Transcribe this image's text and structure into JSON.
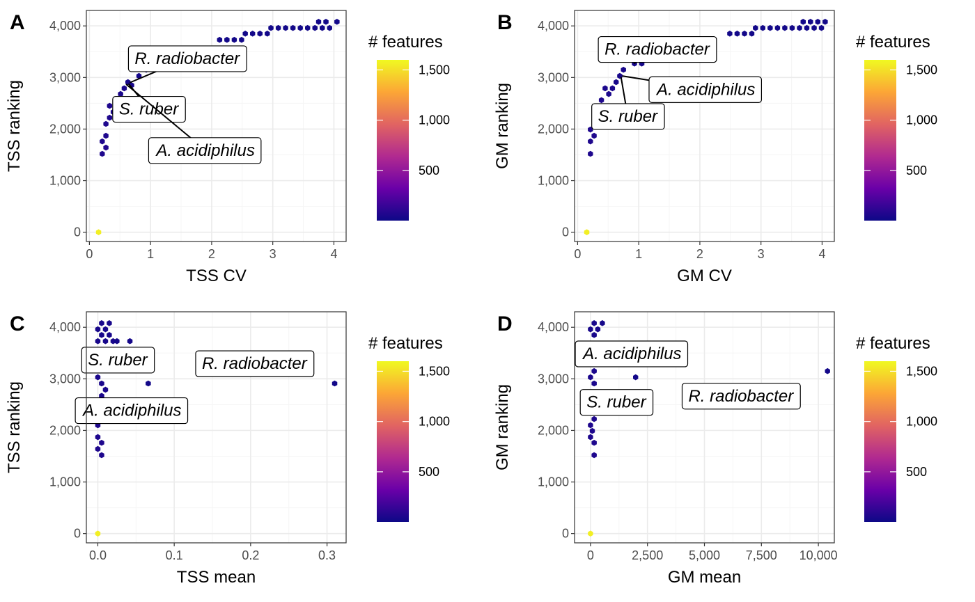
{
  "chart_data": [
    {
      "type": "hexbin",
      "tag": "A",
      "xlabel": "TSS CV",
      "ylabel": "TSS ranking",
      "xlim": [
        -0.05,
        4.2
      ],
      "ylim": [
        -180,
        4300
      ],
      "xticks": [
        0,
        1,
        2,
        3,
        4
      ],
      "xtick_labels": [
        "0",
        "1",
        "2",
        "3",
        "4"
      ],
      "yticks": [
        0,
        1000,
        2000,
        3000,
        4000
      ],
      "ytick_labels": [
        "0",
        "1,000",
        "2,000",
        "3,000",
        "4,000"
      ],
      "grid": true,
      "legend": {
        "title": "# features",
        "ticks": [
          500,
          1000,
          1500
        ],
        "tick_labels": [
          "500",
          "1,000",
          "1,500"
        ],
        "range": [
          1,
          1600
        ],
        "position": "right"
      },
      "points": [
        {
          "x": 0.15,
          "y": 0,
          "count": 1560
        },
        {
          "x": 0.21,
          "y": 1520,
          "count": 60
        },
        {
          "x": 0.27,
          "y": 1640,
          "count": 70
        },
        {
          "x": 0.21,
          "y": 1760,
          "count": 60
        },
        {
          "x": 0.27,
          "y": 1870,
          "count": 60
        },
        {
          "x": 0.27,
          "y": 2100,
          "count": 60
        },
        {
          "x": 0.33,
          "y": 2220,
          "count": 60
        },
        {
          "x": 0.39,
          "y": 2330,
          "count": 50
        },
        {
          "x": 0.33,
          "y": 2450,
          "count": 60
        },
        {
          "x": 0.45,
          "y": 2560,
          "count": 50
        },
        {
          "x": 0.51,
          "y": 2680,
          "count": 50
        },
        {
          "x": 0.57,
          "y": 2790,
          "count": 50
        },
        {
          "x": 0.63,
          "y": 2910,
          "count": 40
        },
        {
          "x": 0.69,
          "y": 2850,
          "count": 40
        },
        {
          "x": 0.81,
          "y": 3030,
          "count": 30
        },
        {
          "x": 0.93,
          "y": 3150,
          "count": 30
        },
        {
          "x": 2.13,
          "y": 3730,
          "count": 20
        },
        {
          "x": 2.25,
          "y": 3730,
          "count": 20
        },
        {
          "x": 2.37,
          "y": 3730,
          "count": 20
        },
        {
          "x": 2.49,
          "y": 3730,
          "count": 20
        },
        {
          "x": 2.55,
          "y": 3850,
          "count": 20
        },
        {
          "x": 2.67,
          "y": 3850,
          "count": 20
        },
        {
          "x": 2.79,
          "y": 3850,
          "count": 20
        },
        {
          "x": 2.91,
          "y": 3850,
          "count": 20
        },
        {
          "x": 2.97,
          "y": 3960,
          "count": 20
        },
        {
          "x": 3.09,
          "y": 3960,
          "count": 20
        },
        {
          "x": 3.21,
          "y": 3960,
          "count": 20
        },
        {
          "x": 3.33,
          "y": 3960,
          "count": 20
        },
        {
          "x": 3.45,
          "y": 3960,
          "count": 20
        },
        {
          "x": 3.57,
          "y": 3960,
          "count": 20
        },
        {
          "x": 3.69,
          "y": 3960,
          "count": 20
        },
        {
          "x": 3.81,
          "y": 3960,
          "count": 20
        },
        {
          "x": 3.93,
          "y": 3960,
          "count": 20
        },
        {
          "x": 3.75,
          "y": 4080,
          "count": 20
        },
        {
          "x": 3.87,
          "y": 4080,
          "count": 20
        },
        {
          "x": 4.05,
          "y": 4080,
          "count": 20
        }
      ],
      "annotations": [
        {
          "text": "R. radiobacter",
          "x": 1.6,
          "y": 3370,
          "point": [
            0.66,
            2900
          ]
        },
        {
          "text": "S. ruber",
          "x": 0.97,
          "y": 2390,
          "point": [
            0.64,
            2880
          ]
        },
        {
          "text": "A. acidiphilus",
          "x": 1.9,
          "y": 1590,
          "point": [
            0.6,
            2870
          ]
        }
      ]
    },
    {
      "type": "hexbin",
      "tag": "B",
      "xlabel": "GM CV",
      "ylabel": "GM ranking",
      "xlim": [
        -0.05,
        4.2
      ],
      "ylim": [
        -180,
        4300
      ],
      "xticks": [
        0,
        1,
        2,
        3,
        4
      ],
      "xtick_labels": [
        "0",
        "1",
        "2",
        "3",
        "4"
      ],
      "yticks": [
        0,
        1000,
        2000,
        3000,
        4000
      ],
      "ytick_labels": [
        "0",
        "1,000",
        "2,000",
        "3,000",
        "4,000"
      ],
      "grid": true,
      "legend": {
        "title": "# features",
        "ticks": [
          500,
          1000,
          1500
        ],
        "tick_labels": [
          "500",
          "1,000",
          "1,500"
        ],
        "range": [
          1,
          1600
        ],
        "position": "right"
      },
      "points": [
        {
          "x": 0.15,
          "y": 0,
          "count": 1560
        },
        {
          "x": 0.21,
          "y": 1520,
          "count": 60
        },
        {
          "x": 0.21,
          "y": 1760,
          "count": 60
        },
        {
          "x": 0.27,
          "y": 1870,
          "count": 60
        },
        {
          "x": 0.21,
          "y": 1990,
          "count": 60
        },
        {
          "x": 0.33,
          "y": 2330,
          "count": 60
        },
        {
          "x": 0.39,
          "y": 2560,
          "count": 60
        },
        {
          "x": 0.51,
          "y": 2680,
          "count": 50
        },
        {
          "x": 0.45,
          "y": 2790,
          "count": 50
        },
        {
          "x": 0.57,
          "y": 2790,
          "count": 50
        },
        {
          "x": 0.63,
          "y": 2910,
          "count": 40
        },
        {
          "x": 0.69,
          "y": 3030,
          "count": 40
        },
        {
          "x": 0.75,
          "y": 3150,
          "count": 40
        },
        {
          "x": 0.93,
          "y": 3270,
          "count": 30
        },
        {
          "x": 1.05,
          "y": 3270,
          "count": 30
        },
        {
          "x": 1.65,
          "y": 3610,
          "count": 20
        },
        {
          "x": 1.77,
          "y": 3610,
          "count": 20
        },
        {
          "x": 2.49,
          "y": 3850,
          "count": 20
        },
        {
          "x": 2.61,
          "y": 3850,
          "count": 20
        },
        {
          "x": 2.73,
          "y": 3850,
          "count": 20
        },
        {
          "x": 2.85,
          "y": 3850,
          "count": 20
        },
        {
          "x": 2.91,
          "y": 3960,
          "count": 20
        },
        {
          "x": 3.03,
          "y": 3960,
          "count": 20
        },
        {
          "x": 3.15,
          "y": 3960,
          "count": 20
        },
        {
          "x": 3.27,
          "y": 3960,
          "count": 20
        },
        {
          "x": 3.39,
          "y": 3960,
          "count": 20
        },
        {
          "x": 3.51,
          "y": 3960,
          "count": 20
        },
        {
          "x": 3.63,
          "y": 3960,
          "count": 20
        },
        {
          "x": 3.75,
          "y": 3960,
          "count": 20
        },
        {
          "x": 3.87,
          "y": 3960,
          "count": 20
        },
        {
          "x": 3.99,
          "y": 3960,
          "count": 20
        },
        {
          "x": 3.69,
          "y": 4080,
          "count": 20
        },
        {
          "x": 3.81,
          "y": 4080,
          "count": 20
        },
        {
          "x": 3.93,
          "y": 4080,
          "count": 20
        },
        {
          "x": 4.05,
          "y": 4080,
          "count": 20
        }
      ],
      "annotations": [
        {
          "text": "R. radiobacter",
          "x": 1.3,
          "y": 3550,
          "point": [
            0.92,
            3270
          ]
        },
        {
          "text": "A. acidiphilus",
          "x": 2.1,
          "y": 2770,
          "point": [
            0.73,
            3030
          ]
        },
        {
          "text": "S. ruber",
          "x": 0.82,
          "y": 2250,
          "point": [
            0.71,
            3010
          ]
        }
      ]
    },
    {
      "type": "hexbin",
      "tag": "C",
      "xlabel": "TSS mean",
      "ylabel": "TSS ranking",
      "xlim": [
        -0.015,
        0.325
      ],
      "ylim": [
        -180,
        4300
      ],
      "xticks": [
        0,
        0.1,
        0.2,
        0.3
      ],
      "xtick_labels": [
        "0.0",
        "0.1",
        "0.2",
        "0.3"
      ],
      "yticks": [
        0,
        1000,
        2000,
        3000,
        4000
      ],
      "ytick_labels": [
        "0",
        "1,000",
        "2,000",
        "3,000",
        "4,000"
      ],
      "grid": true,
      "legend": {
        "title": "# features",
        "ticks": [
          500,
          1000,
          1500
        ],
        "tick_labels": [
          "500",
          "1,000",
          "1,500"
        ],
        "range": [
          1,
          1600
        ],
        "position": "right"
      },
      "points": [
        {
          "x": 0.0,
          "y": 0,
          "count": 1560
        },
        {
          "x": 0.005,
          "y": 1520,
          "count": 60
        },
        {
          "x": 0.0,
          "y": 1640,
          "count": 60
        },
        {
          "x": 0.005,
          "y": 1760,
          "count": 60
        },
        {
          "x": 0.0,
          "y": 1870,
          "count": 60
        },
        {
          "x": 0.0,
          "y": 2100,
          "count": 60
        },
        {
          "x": 0.005,
          "y": 2670,
          "count": 50
        },
        {
          "x": 0.01,
          "y": 2790,
          "count": 50
        },
        {
          "x": 0.005,
          "y": 2910,
          "count": 50
        },
        {
          "x": 0.0,
          "y": 3030,
          "count": 50
        },
        {
          "x": 0.066,
          "y": 2910,
          "count": 20
        },
        {
          "x": 0.31,
          "y": 2910,
          "count": 20
        },
        {
          "x": 0.0,
          "y": 3730,
          "count": 40
        },
        {
          "x": 0.01,
          "y": 3730,
          "count": 40
        },
        {
          "x": 0.02,
          "y": 3730,
          "count": 40
        },
        {
          "x": 0.025,
          "y": 3730,
          "count": 30
        },
        {
          "x": 0.042,
          "y": 3730,
          "count": 30
        },
        {
          "x": 0.005,
          "y": 3850,
          "count": 40
        },
        {
          "x": 0.015,
          "y": 3850,
          "count": 40
        },
        {
          "x": 0.0,
          "y": 3960,
          "count": 40
        },
        {
          "x": 0.01,
          "y": 3960,
          "count": 40
        },
        {
          "x": 0.005,
          "y": 4080,
          "count": 40
        },
        {
          "x": 0.015,
          "y": 4080,
          "count": 40
        }
      ],
      "annotations": [
        {
          "text": "S. ruber",
          "x": 0.026,
          "y": 3370,
          "point": [
            0.03,
            3300
          ]
        },
        {
          "text": "R. radiobacter",
          "x": 0.205,
          "y": 3300,
          "point": [
            0.2,
            3300
          ]
        },
        {
          "text": "A. acidiphilus",
          "x": 0.045,
          "y": 2390,
          "point": [
            0.04,
            2400
          ]
        }
      ]
    },
    {
      "type": "hexbin",
      "tag": "D",
      "xlabel": "GM mean",
      "ylabel": "GM ranking",
      "xlim": [
        -700,
        10700
      ],
      "ylim": [
        -180,
        4300
      ],
      "xticks": [
        0,
        2500,
        5000,
        7500,
        10000
      ],
      "xtick_labels": [
        "0",
        "2,500",
        "5,000",
        "7,500",
        "10,000"
      ],
      "yticks": [
        0,
        1000,
        2000,
        3000,
        4000
      ],
      "ytick_labels": [
        "0",
        "1,000",
        "2,000",
        "3,000",
        "4,000"
      ],
      "grid": true,
      "legend": {
        "title": "# features",
        "ticks": [
          500,
          1000,
          1500
        ],
        "tick_labels": [
          "500",
          "1,000",
          "1,500"
        ],
        "range": [
          1,
          1600
        ],
        "position": "right"
      },
      "points": [
        {
          "x": 0,
          "y": 0,
          "count": 1560
        },
        {
          "x": 160,
          "y": 1520,
          "count": 60
        },
        {
          "x": 160,
          "y": 1760,
          "count": 60
        },
        {
          "x": 0,
          "y": 1870,
          "count": 60
        },
        {
          "x": 80,
          "y": 1990,
          "count": 60
        },
        {
          "x": 0,
          "y": 2100,
          "count": 60
        },
        {
          "x": 160,
          "y": 2220,
          "count": 60
        },
        {
          "x": 160,
          "y": 2910,
          "count": 50
        },
        {
          "x": 0,
          "y": 3030,
          "count": 50
        },
        {
          "x": 160,
          "y": 3150,
          "count": 50
        },
        {
          "x": 1980,
          "y": 3030,
          "count": 20
        },
        {
          "x": 10400,
          "y": 3150,
          "count": 20
        },
        {
          "x": 160,
          "y": 3850,
          "count": 40
        },
        {
          "x": 0,
          "y": 3960,
          "count": 40
        },
        {
          "x": 320,
          "y": 3960,
          "count": 40
        },
        {
          "x": 160,
          "y": 4080,
          "count": 40
        },
        {
          "x": 520,
          "y": 4080,
          "count": 30
        }
      ],
      "annotations": [
        {
          "text": "A. acidiphilus",
          "x": 1830,
          "y": 3490,
          "point": [
            300,
            3400
          ]
        },
        {
          "text": "S. ruber",
          "x": 1130,
          "y": 2550,
          "point": [
            200,
            2700
          ]
        },
        {
          "text": "R. radiobacter",
          "x": 6600,
          "y": 2670,
          "point": [
            6500,
            2700
          ]
        }
      ]
    }
  ],
  "colors": {
    "viridis_plasma": [
      "#0d0887",
      "#6a00a8",
      "#b12a90",
      "#e16462",
      "#fca636",
      "#f0f921"
    ],
    "panel_border": "#333333",
    "grid_major": "#ebebeb",
    "grid_minor": "#f5f5f5"
  }
}
